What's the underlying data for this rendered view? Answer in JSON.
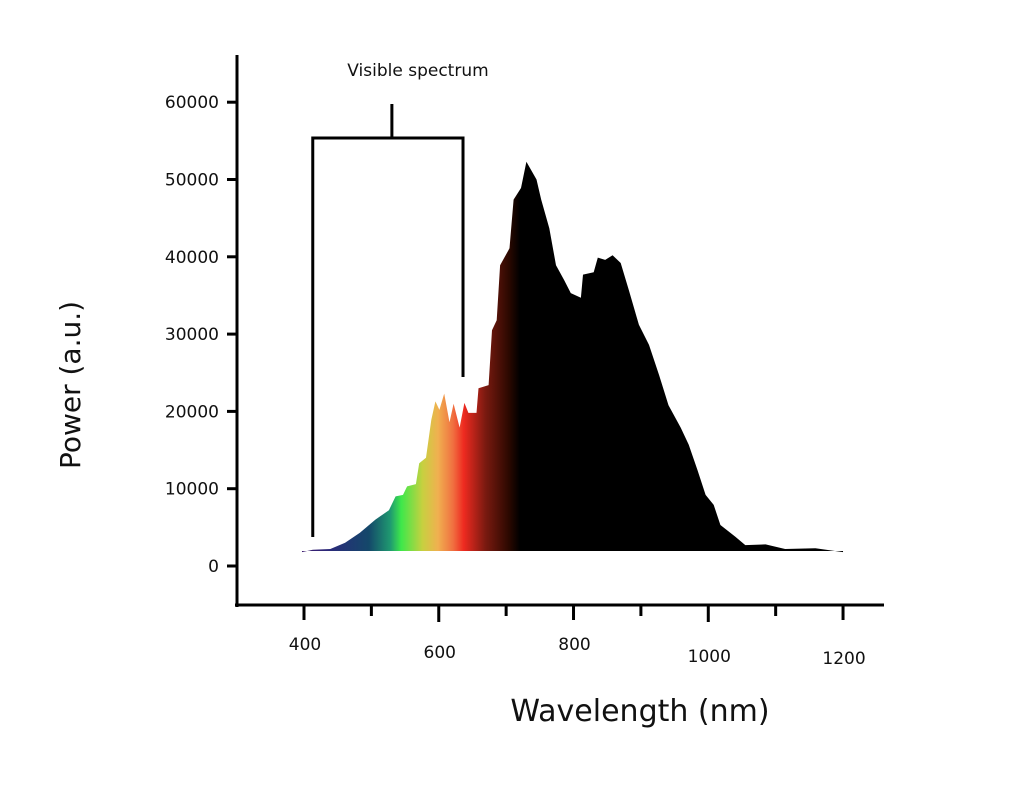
{
  "chart_data": {
    "type": "area",
    "title": "",
    "xlabel": "Wavelength (nm)",
    "ylabel": "Power (a.u.)",
    "xlim": [
      300,
      1260
    ],
    "ylim": [
      -5000,
      66000
    ],
    "x_ticks": [
      400,
      600,
      800,
      1000,
      1200
    ],
    "x_minor_ticks": [
      300,
      500,
      700,
      900,
      1100
    ],
    "y_ticks": [
      0,
      10000,
      20000,
      30000,
      40000,
      50000,
      60000
    ],
    "grid": false,
    "fill": "spectral color gradient in the visible range, black beyond ~720 nm",
    "annotation": {
      "text": "Visible spectrum",
      "range_nm": [
        413,
        636
      ]
    },
    "x": [
      397,
      413,
      439,
      461,
      483,
      506,
      526,
      536,
      547,
      553,
      566,
      571,
      581,
      589,
      595,
      601,
      608,
      616,
      622,
      631,
      638,
      644,
      656,
      659,
      674,
      679,
      686,
      691,
      705,
      711,
      722,
      730,
      745,
      752,
      764,
      774,
      786,
      796,
      811,
      814,
      830,
      836,
      847,
      858,
      870,
      882,
      897,
      912,
      927,
      941,
      959,
      971,
      984,
      996,
      1008,
      1018,
      1040,
      1055,
      1085,
      1114,
      1159,
      1200
    ],
    "y": [
      1800,
      2100,
      2200,
      3000,
      4300,
      6000,
      7200,
      9000,
      9200,
      10300,
      10600,
      13300,
      14000,
      18900,
      21300,
      20200,
      22300,
      18600,
      21000,
      17900,
      21100,
      19800,
      19800,
      23000,
      23400,
      30500,
      31800,
      38900,
      41100,
      47400,
      48900,
      52300,
      50000,
      47400,
      43700,
      38900,
      37000,
      35300,
      34700,
      37700,
      38000,
      39900,
      39600,
      40200,
      39200,
      35700,
      31200,
      28600,
      24700,
      20800,
      17900,
      15700,
      12400,
      9200,
      7900,
      5300,
      3800,
      2700,
      2800,
      2200,
      2300,
      1800
    ]
  }
}
